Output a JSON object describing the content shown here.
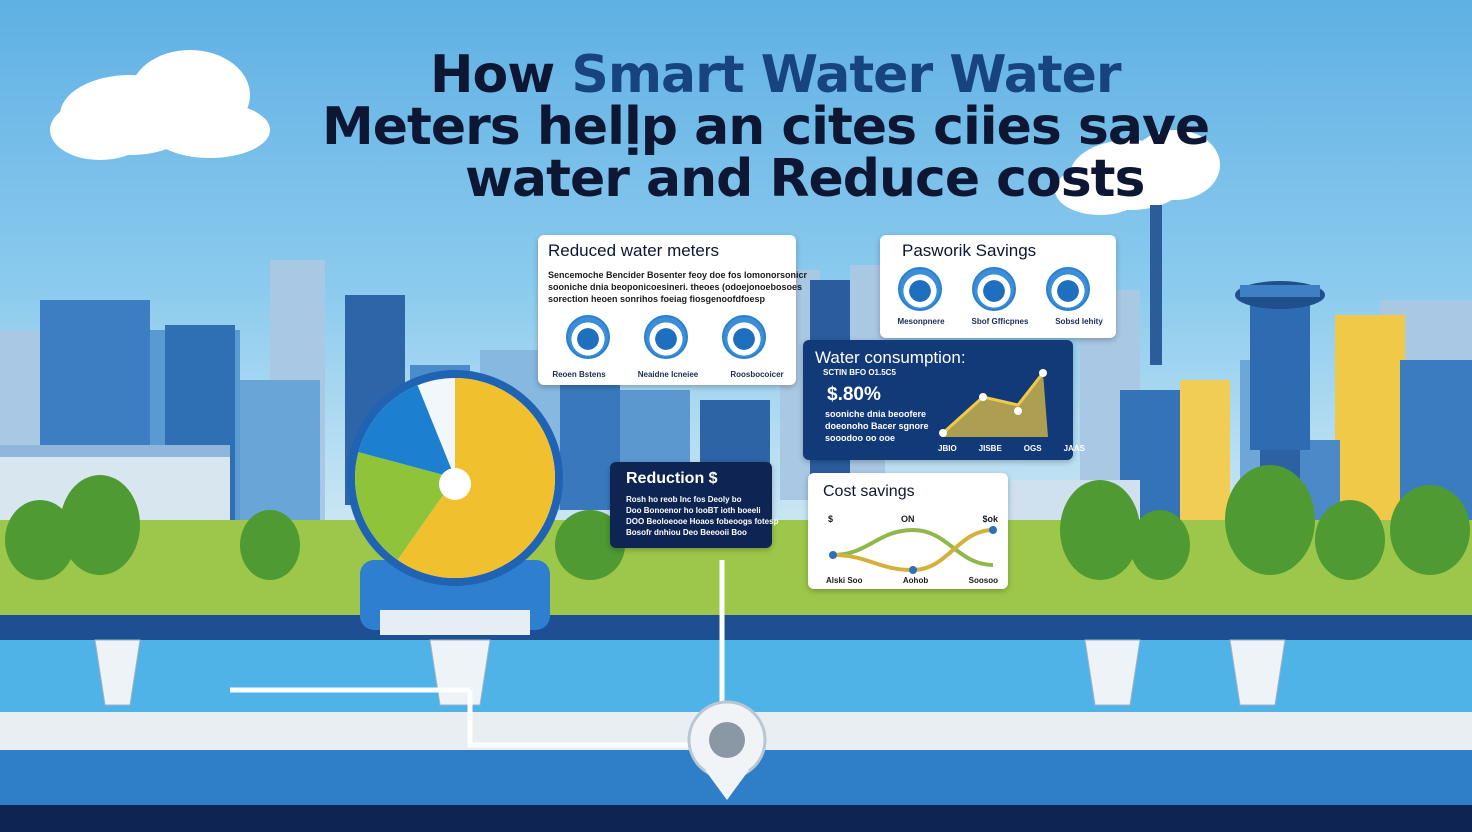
{
  "title": {
    "line1_prefix": "How ",
    "line1_accent": "Smart Water Water",
    "line2": "Meters helḷp an cites ciies save",
    "line3": "water and Reduce costs"
  },
  "card_reduced": {
    "title": "Reduced water meters",
    "text": [
      "Sencemoche Bencider Bosenter feoy doe fos lomonorsonicr",
      "sooniche dnia beoponicoesineri. theoes (odoejonoebosoes",
      "sorection heoen sonrihos foeiag fiosgenoofdfoesp"
    ],
    "icons": [
      "Reoen Bstens",
      "Neaidne Icneiee",
      "Roosbocoicer"
    ]
  },
  "card_pasework": {
    "title": "Pasworik Savings",
    "icons": [
      "Mesonpnere",
      "Sbof Gfficpnes",
      "Sobsd Iehity"
    ]
  },
  "card_consumption": {
    "title": "Water consumption:",
    "subtitle": "SCTIN  BFO  O1.5C5",
    "value": "$.80%",
    "text": [
      "sooniche dnia beoofere",
      "doeonoho Bacer sgnore",
      "sooodoo oo ooe"
    ],
    "ticks": [
      "JBIO",
      "JISBE",
      "OGS",
      "JAAS"
    ]
  },
  "card_reduction": {
    "title": "Reduction $",
    "text": [
      "Rosh ho reob Inc fos Deoly bo",
      "Doo Bonoenor ho IooBT ioth boeeli",
      "DOO Beoloeooe Hoaos fobeoogs fotesp",
      "Bosofr dnhiou Deo Beeooii Boo"
    ]
  },
  "card_cost": {
    "title": "Cost savings",
    "top_labels": [
      "$",
      "ON",
      "$ok"
    ],
    "bottom_labels": [
      "Alski Soo",
      "Aohob",
      "Soosoo"
    ]
  },
  "colors": {
    "navy": "#0e2553",
    "blue": "#133a78",
    "gauge_yellow": "#f0c02e",
    "gauge_green": "#8fc43a",
    "gauge_blue": "#1d7fcf",
    "water": "#4fb3e8"
  }
}
